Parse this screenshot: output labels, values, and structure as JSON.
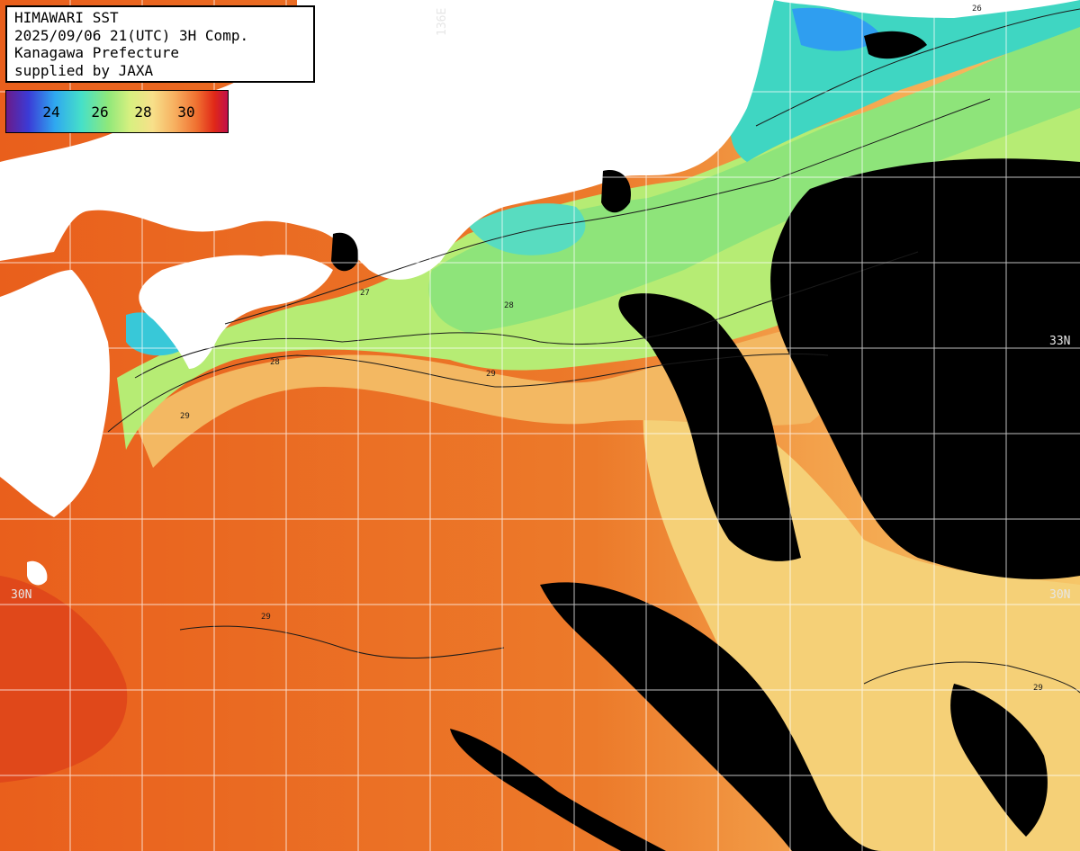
{
  "title": {
    "line1": "HIMAWARI SST",
    "line2": "2025/09/06 21(UTC) 3H Comp.",
    "line3": "Kanagawa Prefecture",
    "line4": "supplied by JAXA"
  },
  "colorbar": {
    "ticks": [
      "24",
      "26",
      "28",
      "30"
    ],
    "gradient": [
      "#6a1b8a",
      "#3b3bd6",
      "#2fa8f0",
      "#46e0c8",
      "#8fe87a",
      "#d8f080",
      "#f7e08a",
      "#f7b060",
      "#f07030",
      "#e02818",
      "#c0104a"
    ]
  },
  "grid_labels": {
    "lon_136": "136E",
    "lat_33_right": "33N",
    "lat_30_left": "30N",
    "lat_30_right": "30N"
  },
  "contour_labels": [
    "26",
    "27",
    "28",
    "29"
  ],
  "colors": {
    "land": "#ffffff",
    "cloud": "#000000",
    "warm_sea": "#e8641e",
    "mid_sea": "#f6a850",
    "yellow_sea": "#f6e27a",
    "green_sea": "#9ee86e",
    "cyan_sea": "#45d8c0",
    "grid": "#ffffff"
  }
}
